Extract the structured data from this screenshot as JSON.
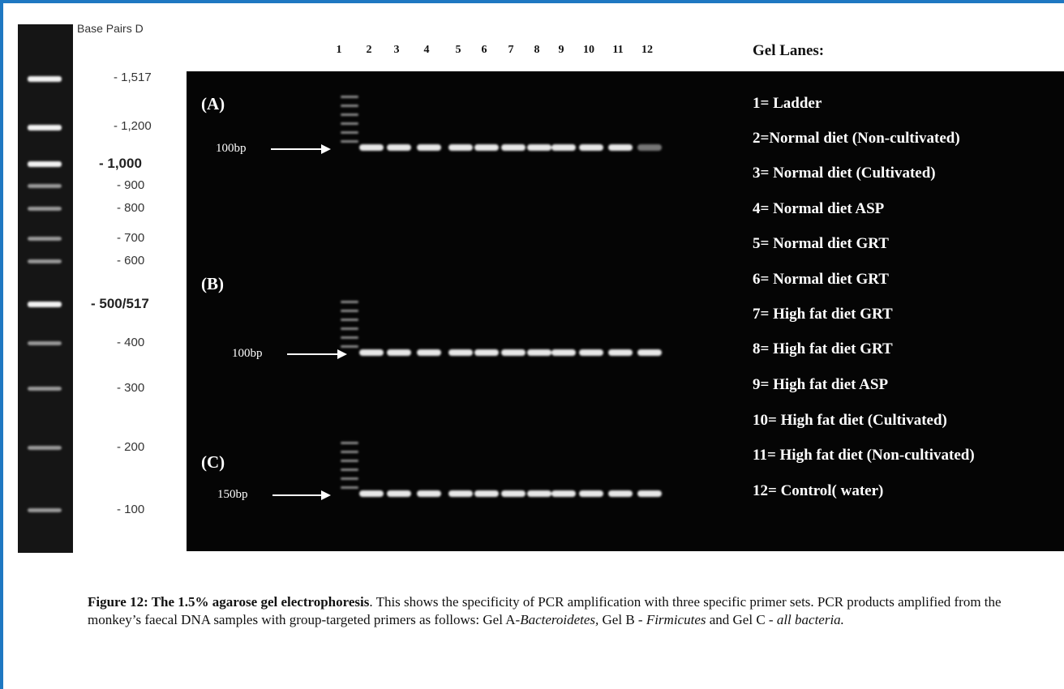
{
  "ladder": {
    "title": "Base Pairs D",
    "labels": [
      "- 1,517",
      "- 1,200",
      "- 1,000",
      "- 900",
      "- 800",
      "- 700",
      "- 600",
      "- 500/517",
      "- 400",
      "- 300",
      "- 200",
      "- 100"
    ]
  },
  "gel": {
    "lane_numbers": [
      "1",
      "2",
      "3",
      "4",
      "5",
      "6",
      "7",
      "8",
      "9",
      "10",
      "11",
      "12"
    ],
    "panels": [
      {
        "label": "(A)",
        "size": "100bp"
      },
      {
        "label": "(B)",
        "size": "100bp"
      },
      {
        "label": "(C)",
        "size": "150bp"
      }
    ]
  },
  "legend": {
    "title": "Gel Lanes:",
    "items": [
      "1= Ladder",
      "2=Normal diet (Non-cultivated)",
      "3= Normal diet (Cultivated)",
      "4= Normal diet ASP",
      "5= Normal diet GRT",
      "6= Normal diet GRT",
      "7= High fat diet GRT",
      "8= High fat diet GRT",
      "9= High fat diet ASP",
      "10= High fat diet (Cultivated)",
      "11= High fat diet (Non-cultivated)",
      "12= Control( water)"
    ]
  },
  "caption": {
    "runs": [
      "Figure 12: The 1.5% agarose gel electrophoresis",
      ". This shows the specificity of PCR amplification with three specific primer sets. PCR products amplified from the monkey’s faecal DNA samples with group-targeted primers as follows: Gel A-",
      "Bacteroidetes,",
      " Gel B - ",
      "Firmicutes",
      " and Gel C - ",
      "all bacteria."
    ]
  }
}
